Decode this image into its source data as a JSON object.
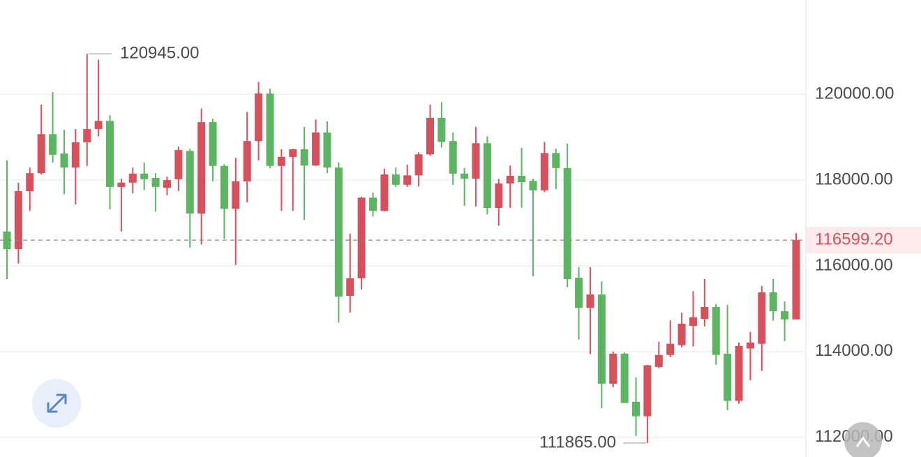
{
  "chart_data": {
    "type": "candlestick",
    "up_color": "#d6515c",
    "down_color": "#5db462",
    "ylim": [
      111540,
      122200
    ],
    "yticks": [
      {
        "value": 120000,
        "label": "120000.00"
      },
      {
        "value": 118000,
        "label": "118000.00"
      },
      {
        "value": 116000,
        "label": "116000.00"
      },
      {
        "value": 114000,
        "label": "114000.00"
      },
      {
        "value": 112000,
        "label": "112000.00"
      }
    ],
    "grid": true,
    "open": [
      116800,
      116390,
      117740,
      118160,
      119070,
      118620,
      118290,
      118880,
      119190,
      119380,
      117840,
      117940,
      118150,
      118050,
      117820,
      118020,
      118680,
      117220,
      119350,
      118330,
      117330,
      117970,
      118910,
      120020,
      118330,
      118540,
      118720,
      118340,
      119110,
      118290,
      115300,
      115710,
      117590,
      117280,
      118130,
      117890,
      118110,
      118600,
      119450,
      118910,
      118150,
      118030,
      118860,
      117350,
      117920,
      118100,
      117980,
      117760,
      118630,
      118280,
      115720,
      115020,
      115330,
      113250,
      113950,
      112830,
      112490,
      113640,
      113920,
      114150,
      114600,
      114760,
      115040,
      113950,
      112850,
      114070,
      114180,
      115380,
      114940,
      114750
    ],
    "high": [
      118460,
      117940,
      118290,
      119760,
      120050,
      119170,
      119190,
      120945,
      120810,
      119510,
      118030,
      118290,
      118410,
      118160,
      118080,
      118780,
      118730,
      119670,
      119430,
      118370,
      118520,
      119590,
      120290,
      120130,
      118720,
      118730,
      119240,
      119410,
      119370,
      118410,
      116750,
      117610,
      117710,
      118260,
      118290,
      118360,
      118650,
      119760,
      119820,
      119110,
      118280,
      119240,
      119020,
      118030,
      118340,
      118750,
      118030,
      118890,
      118730,
      118850,
      115970,
      115970,
      115640,
      114000,
      113980,
      113400,
      113690,
      114230,
      114730,
      114910,
      115410,
      115690,
      115110,
      115090,
      114210,
      114460,
      115530,
      115690,
      115170,
      116760
    ],
    "low": [
      115690,
      116050,
      117280,
      118130,
      118410,
      117670,
      117430,
      118330,
      119020,
      117320,
      116800,
      117690,
      117770,
      117270,
      117640,
      117740,
      116420,
      116500,
      117970,
      116630,
      116020,
      117480,
      118460,
      118280,
      117280,
      117280,
      117070,
      118330,
      118160,
      114680,
      114910,
      115450,
      117150,
      117270,
      117840,
      117840,
      117850,
      118570,
      118760,
      117890,
      117400,
      117380,
      117200,
      116940,
      117350,
      117350,
      115760,
      117720,
      117790,
      115500,
      114280,
      113940,
      112680,
      113170,
      112800,
      112030,
      111865,
      113610,
      113870,
      114100,
      114120,
      114590,
      113690,
      112630,
      112780,
      113330,
      113550,
      114720,
      114240,
      114750
    ],
    "close": [
      116390,
      117740,
      118160,
      119070,
      118590,
      118290,
      118880,
      119190,
      119380,
      117840,
      117940,
      118150,
      118020,
      117840,
      118000,
      118700,
      117220,
      119350,
      118330,
      117330,
      117970,
      118910,
      120020,
      118330,
      118540,
      118720,
      118340,
      119110,
      118290,
      115280,
      115710,
      117590,
      117280,
      118130,
      117890,
      118110,
      118600,
      119450,
      118890,
      118150,
      118030,
      118860,
      117350,
      117920,
      118100,
      117950,
      117760,
      118630,
      118280,
      115690,
      115020,
      115330,
      113250,
      113950,
      112800,
      112490,
      113680,
      113920,
      114180,
      114650,
      114800,
      115040,
      113920,
      112850,
      114130,
      114210,
      115380,
      114940,
      114750,
      116599.2
    ],
    "max_annotation": {
      "value": 120945,
      "label": "120945.00"
    },
    "min_annotation": {
      "value": 111865,
      "label": "111865.00"
    },
    "last_price": {
      "value": 116599.2,
      "label": "116599.20"
    }
  }
}
